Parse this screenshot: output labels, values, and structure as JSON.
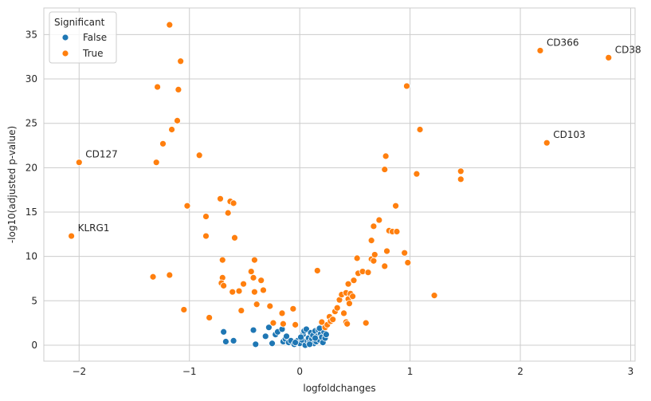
{
  "chart_data": {
    "type": "scatter",
    "xlabel": "logfoldchanges",
    "ylabel": "-log10(adjusted p-value)",
    "xlim": [
      -2.32,
      3.04
    ],
    "ylim": [
      -1.8,
      38
    ],
    "xticks": [
      -2,
      -1,
      0,
      1,
      2,
      3
    ],
    "yticks": [
      0,
      5,
      10,
      15,
      20,
      25,
      30,
      35
    ],
    "grid": true,
    "legend": {
      "title": "Significant",
      "placement": "top-left",
      "entries": [
        "False",
        "True"
      ]
    },
    "series": [
      {
        "name": "False",
        "color": "#1f77b4",
        "points": [
          [
            -0.69,
            1.5
          ],
          [
            -0.67,
            0.4
          ],
          [
            -0.6,
            0.5
          ],
          [
            -0.42,
            1.7
          ],
          [
            -0.4,
            0.1
          ],
          [
            -0.31,
            1.0
          ],
          [
            -0.28,
            2.0
          ],
          [
            -0.25,
            0.2
          ],
          [
            -0.22,
            1.2
          ],
          [
            -0.2,
            1.5
          ],
          [
            -0.16,
            1.8
          ],
          [
            -0.15,
            0.4
          ],
          [
            -0.13,
            0.7
          ],
          [
            -0.12,
            1.0
          ],
          [
            -0.1,
            0.3
          ],
          [
            -0.08,
            0.5
          ],
          [
            -0.05,
            0.1
          ],
          [
            -0.02,
            0.5
          ],
          [
            0.0,
            0.2
          ],
          [
            0.02,
            0.6
          ],
          [
            0.03,
            1.2
          ],
          [
            0.04,
            1.6
          ],
          [
            0.05,
            0.0
          ],
          [
            0.06,
            1.8
          ],
          [
            0.07,
            0.5
          ],
          [
            0.08,
            0.8
          ],
          [
            0.09,
            0.3
          ],
          [
            0.1,
            1.4
          ],
          [
            0.11,
            0.7
          ],
          [
            0.12,
            1.1
          ],
          [
            0.13,
            0.2
          ],
          [
            0.14,
            1.6
          ],
          [
            0.15,
            0.4
          ],
          [
            0.16,
            1.0
          ],
          [
            0.17,
            1.7
          ],
          [
            0.18,
            0.6
          ],
          [
            0.19,
            1.3
          ],
          [
            0.2,
            0.9
          ],
          [
            0.21,
            0.3
          ],
          [
            0.22,
            1.5
          ],
          [
            0.23,
            0.8
          ],
          [
            0.24,
            1.2
          ],
          [
            -0.04,
            0.3
          ],
          [
            0.01,
            0.9
          ],
          [
            0.09,
            0.1
          ],
          [
            0.14,
            0.8
          ],
          [
            0.18,
            1.9
          ]
        ]
      },
      {
        "name": "True",
        "color": "#ff7f0e",
        "points": [
          [
            -1.18,
            36.1
          ],
          [
            -1.08,
            32.0
          ],
          [
            -1.29,
            29.1
          ],
          [
            -1.1,
            28.8
          ],
          [
            -1.11,
            25.3
          ],
          [
            -1.16,
            24.3
          ],
          [
            -1.24,
            22.7
          ],
          [
            -0.91,
            21.4
          ],
          [
            -1.3,
            20.6
          ],
          [
            -2.0,
            20.6
          ],
          [
            -2.07,
            12.3
          ],
          [
            -0.72,
            16.5
          ],
          [
            -0.63,
            16.2
          ],
          [
            -0.6,
            16.0
          ],
          [
            -1.02,
            15.7
          ],
          [
            -0.85,
            14.5
          ],
          [
            -0.65,
            14.9
          ],
          [
            -0.85,
            12.3
          ],
          [
            -0.59,
            12.1
          ],
          [
            -0.7,
            9.6
          ],
          [
            -0.41,
            9.6
          ],
          [
            -0.44,
            8.3
          ],
          [
            -1.33,
            7.7
          ],
          [
            -1.18,
            7.9
          ],
          [
            -0.7,
            7.6
          ],
          [
            -0.42,
            7.6
          ],
          [
            -0.35,
            7.3
          ],
          [
            -0.51,
            6.9
          ],
          [
            -0.71,
            7.0
          ],
          [
            -0.69,
            6.7
          ],
          [
            -0.61,
            6.0
          ],
          [
            -0.55,
            6.1
          ],
          [
            -0.41,
            6.0
          ],
          [
            -0.33,
            6.2
          ],
          [
            -0.39,
            4.6
          ],
          [
            -0.27,
            4.4
          ],
          [
            -1.05,
            4.0
          ],
          [
            -0.53,
            3.9
          ],
          [
            -0.82,
            3.1
          ],
          [
            -0.16,
            3.6
          ],
          [
            -0.06,
            4.1
          ],
          [
            -0.24,
            2.5
          ],
          [
            -0.15,
            2.4
          ],
          [
            -0.04,
            2.3
          ],
          [
            0.16,
            8.4
          ],
          [
            0.2,
            2.6
          ],
          [
            0.23,
            2.0
          ],
          [
            0.25,
            2.3
          ],
          [
            0.27,
            3.2
          ],
          [
            0.28,
            2.7
          ],
          [
            0.3,
            2.9
          ],
          [
            0.32,
            3.8
          ],
          [
            0.34,
            4.2
          ],
          [
            0.36,
            5.1
          ],
          [
            0.38,
            5.7
          ],
          [
            0.4,
            3.6
          ],
          [
            0.42,
            2.6
          ],
          [
            0.43,
            2.4
          ],
          [
            0.42,
            5.9
          ],
          [
            0.44,
            5.2
          ],
          [
            0.45,
            4.7
          ],
          [
            0.46,
            5.8
          ],
          [
            0.48,
            5.5
          ],
          [
            0.44,
            6.9
          ],
          [
            0.49,
            7.3
          ],
          [
            0.52,
            9.8
          ],
          [
            0.53,
            8.1
          ],
          [
            0.57,
            8.3
          ],
          [
            0.6,
            2.5
          ],
          [
            0.62,
            8.2
          ],
          [
            0.65,
            9.7
          ],
          [
            0.67,
            9.5
          ],
          [
            0.68,
            10.2
          ],
          [
            0.65,
            11.8
          ],
          [
            0.67,
            13.4
          ],
          [
            0.72,
            14.1
          ],
          [
            0.77,
            8.9
          ],
          [
            0.79,
            10.6
          ],
          [
            0.81,
            12.9
          ],
          [
            0.84,
            12.8
          ],
          [
            0.88,
            12.8
          ],
          [
            0.87,
            15.7
          ],
          [
            0.77,
            19.8
          ],
          [
            0.78,
            21.3
          ],
          [
            0.95,
            10.4
          ],
          [
            0.98,
            9.3
          ],
          [
            1.06,
            19.3
          ],
          [
            1.09,
            24.3
          ],
          [
            0.97,
            29.2
          ],
          [
            1.22,
            5.6
          ],
          [
            1.46,
            19.6
          ],
          [
            1.46,
            18.7
          ],
          [
            2.18,
            33.2
          ],
          [
            2.8,
            32.4
          ],
          [
            2.24,
            22.8
          ]
        ]
      }
    ],
    "annotations": [
      {
        "text": "CD366",
        "x": 2.18,
        "y": 33.2
      },
      {
        "text": "CD38",
        "x": 2.8,
        "y": 32.4
      },
      {
        "text": "CD103",
        "x": 2.24,
        "y": 22.8
      },
      {
        "text": "CD127",
        "x": -2.0,
        "y": 20.6
      },
      {
        "text": "KLRG1",
        "x": -2.07,
        "y": 12.3
      }
    ]
  }
}
